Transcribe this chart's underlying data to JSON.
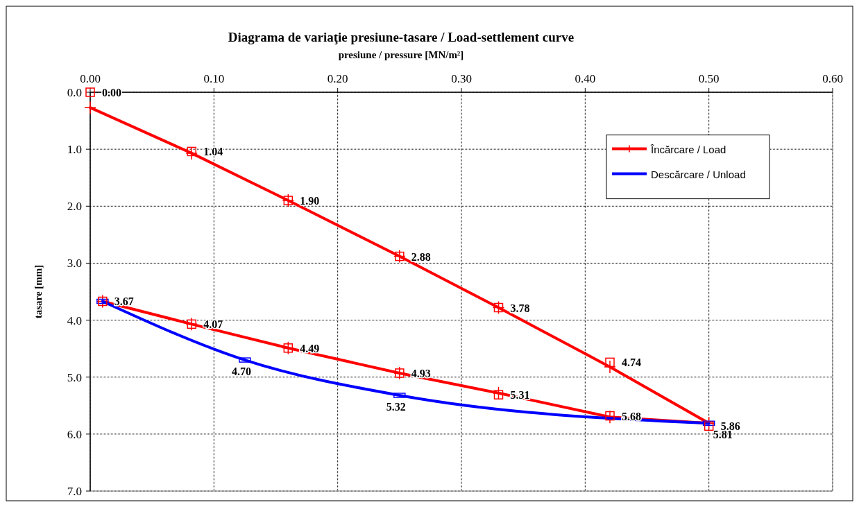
{
  "chart_data": {
    "type": "line",
    "title": "Diagrama de variaţie presiune-tasare / Load-settlement curve",
    "xlabel": "presiune / pressure [MN/m²]",
    "ylabel": "tasare [mm]",
    "xlim": [
      0,
      0.6
    ],
    "xticks": [
      {
        "value": 0,
        "label": "0.00"
      },
      {
        "value": 0.1,
        "label": "0.10"
      },
      {
        "value": 0.2,
        "label": "0.20"
      },
      {
        "value": 0.3,
        "label": "0.30"
      },
      {
        "value": 0.4,
        "label": "0.40"
      },
      {
        "value": 0.5,
        "label": "0.50"
      },
      {
        "value": 0.6,
        "label": "0.60"
      }
    ],
    "ylim": [
      7,
      0
    ],
    "yticks": [
      {
        "value": 0,
        "label": "0.0"
      },
      {
        "value": 1,
        "label": "1.0"
      },
      {
        "value": 2,
        "label": "2.0"
      },
      {
        "value": 3,
        "label": "3.0"
      },
      {
        "value": 4,
        "label": "4.0"
      },
      {
        "value": 5,
        "label": "5.0"
      },
      {
        "value": 6,
        "label": "6.0"
      },
      {
        "value": 7,
        "label": "7.0"
      }
    ],
    "grid": true,
    "legend": "top right",
    "series": [
      {
        "type": "line",
        "name": "Încărcare / Load",
        "color": "#ff0000",
        "marker": "cross",
        "x": [
          0,
          0.082,
          0.16,
          0.25,
          0.33,
          0.42,
          0.5,
          0.42,
          0.33,
          0.25,
          0.16,
          0.082,
          0.01
        ],
        "values": [
          0.27,
          1.07,
          1.9,
          2.88,
          3.78,
          4.82,
          5.81,
          5.7,
          5.28,
          4.93,
          4.49,
          4.07,
          3.67
        ]
      },
      {
        "type": "line",
        "name": "Descărcare / Unload",
        "color": "#0000ff",
        "marker": "square",
        "x": [
          0.01,
          0.125,
          0.25,
          0.5
        ],
        "values": [
          3.67,
          4.7,
          5.32,
          5.81
        ],
        "value_labels": [
          null,
          "4.70",
          "5.32",
          "5.81"
        ]
      },
      {
        "type": "scatter",
        "color": "#ff0000",
        "marker": "square",
        "x": [
          0,
          0.082,
          0.16,
          0.25,
          0.33,
          0.42,
          0.5,
          0.42,
          0.33,
          0.25,
          0.16,
          0.082,
          0.01
        ],
        "values": [
          0,
          1.04,
          1.9,
          2.88,
          3.78,
          4.74,
          5.86,
          5.68,
          5.31,
          4.93,
          4.49,
          4.07,
          3.67
        ],
        "value_labels": [
          "0.00",
          "1.04",
          "1.90",
          "2.88",
          "3.78",
          "4.74",
          "5.86",
          "5.68",
          "5.31",
          "4.93",
          "4.49",
          "4.07",
          "3.67"
        ]
      }
    ]
  }
}
